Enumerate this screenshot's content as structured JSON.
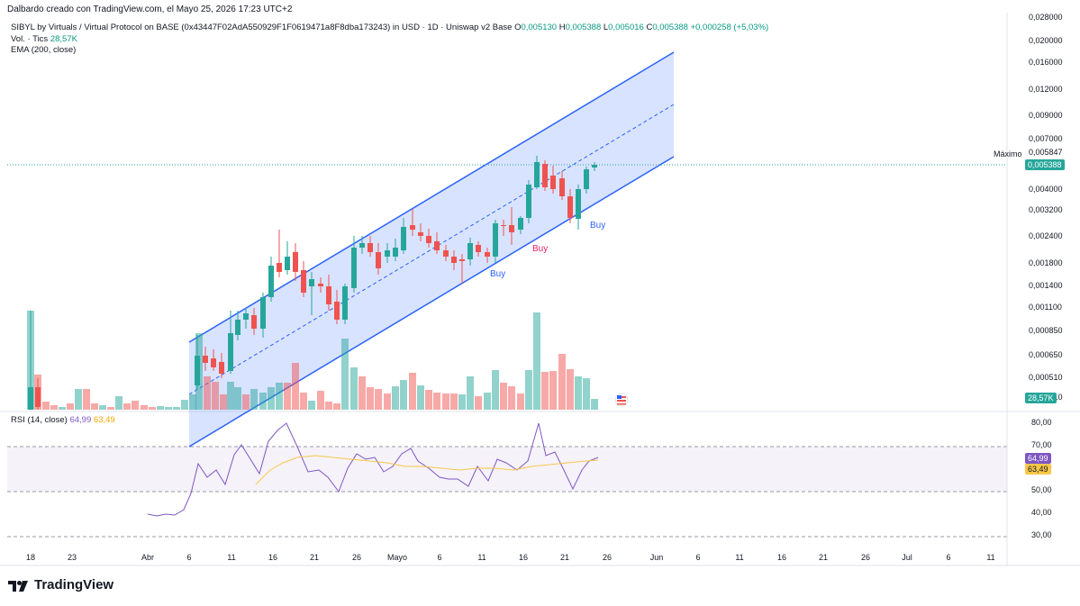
{
  "header": {
    "created_by": "Dalbardo creado con TradingView.com, el Mayo 25, 2026 17:23 UTC+2"
  },
  "legend": {
    "symbol": "SIBYL by Virtuals / Virtual Protocol on BASE (0x43447F02AdA550929F1F0619471a8F8dba173243) in USD · 1D · Uniswap v2 Base",
    "o_label": "O",
    "o": "0,005130",
    "h_label": "H",
    "h": "0,005388",
    "l_label": "L",
    "l": "0,005016",
    "c_label": "C",
    "c": "0,005388",
    "change": "+0,000258 (+5,03%)",
    "volume_label": "Vol. · Tics",
    "volume": "28,57K",
    "ema_label": "EMA (200, close)",
    "rsi_label": "RSI (14, close)",
    "rsi_value": "64,99",
    "rsi_ma": "63,49"
  },
  "price_axis": [
    "0,028000",
    "0,020000",
    "0,016000",
    "0,012000",
    "0,009000",
    "0,007000",
    "0,005847",
    "0,004000",
    "0,003200",
    "0,002400",
    "0,001800",
    "0,001400",
    "0,001100",
    "0,000850",
    "0,000650",
    "0,000510",
    "0,000410"
  ],
  "max_label": "Máximo",
  "max_value": "0,005847",
  "last_price": "0,005388",
  "volume_tag": "28,57K",
  "rsi_axis": [
    "80,00",
    "70,00",
    "60,00",
    "50,00",
    "40,00",
    "30,00"
  ],
  "rsi_tags": {
    "rsi": "64,99",
    "ma": "63,49"
  },
  "time_axis": [
    "18",
    "23",
    "Abr",
    "6",
    "11",
    "16",
    "21",
    "26",
    "Mayo",
    "6",
    "11",
    "16",
    "21",
    "26",
    "Jun",
    "6",
    "11",
    "16",
    "21",
    "26",
    "Jul",
    "6",
    "11"
  ],
  "signals": {
    "buy1": "Buy",
    "sell": "Buy",
    "buy2": "Buy"
  },
  "branding": {
    "name": "TradingView"
  },
  "colors": {
    "up": "#26a69a",
    "down": "#ef5350",
    "channel": "#2962ff",
    "rsi": "#7e57c2",
    "rsi_ma": "#f7c748",
    "signal_buy": "#2962ff",
    "signal_sell": "#e91e63"
  }
}
